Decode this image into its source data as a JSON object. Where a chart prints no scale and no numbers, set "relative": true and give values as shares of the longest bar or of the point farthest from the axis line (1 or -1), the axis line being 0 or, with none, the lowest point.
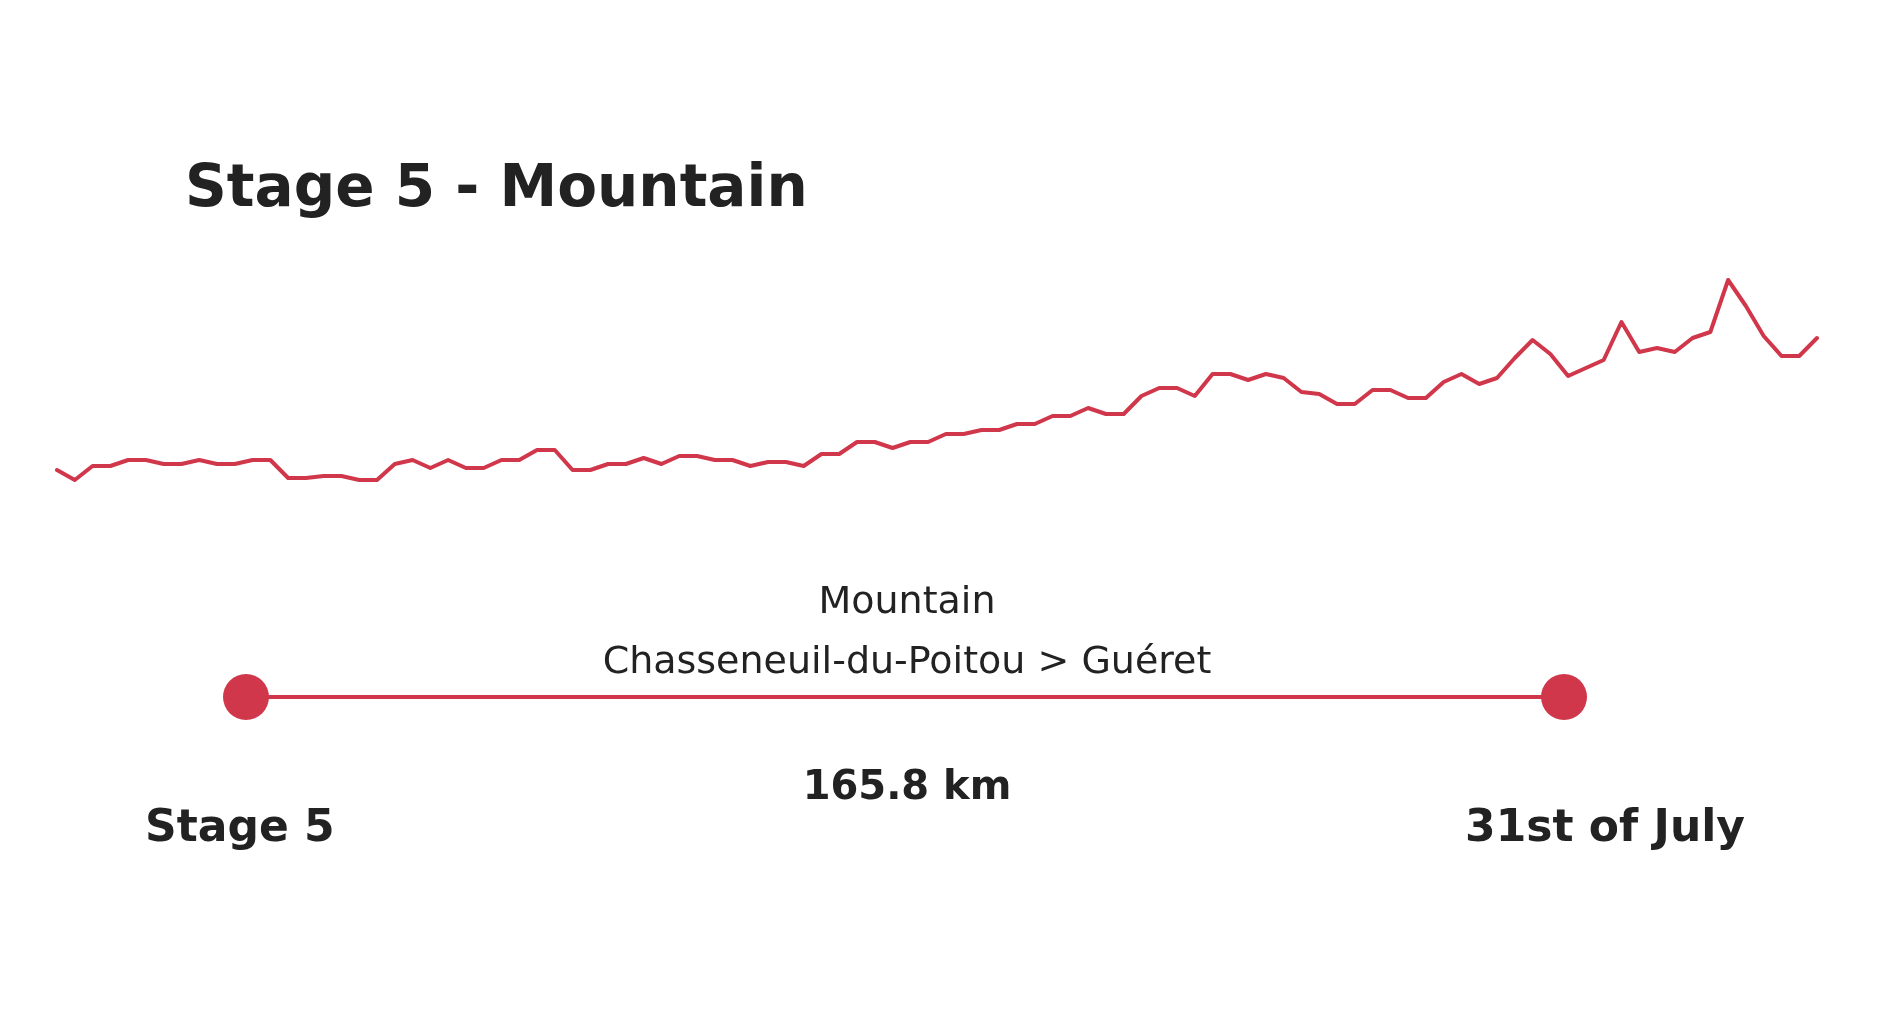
{
  "chart_data": {
    "type": "line",
    "title": "Stage 5 - Mountain",
    "relative": true,
    "categories": [
      null,
      null,
      null,
      null,
      null,
      null,
      null,
      null,
      null,
      null,
      null,
      null,
      null,
      null,
      null,
      null,
      null,
      null,
      null,
      null,
      null,
      null,
      null,
      null,
      null,
      null,
      null,
      null,
      null,
      null,
      null,
      null,
      null,
      null,
      null,
      null,
      null,
      null,
      null,
      null,
      null,
      null,
      null,
      null,
      null,
      null,
      null,
      null,
      null,
      null,
      null,
      null,
      null,
      null,
      null,
      null,
      null,
      null,
      null,
      null,
      null,
      null,
      null,
      null,
      null,
      null,
      null,
      null,
      null,
      null,
      null,
      null,
      null,
      null,
      null,
      null,
      null,
      null,
      null,
      null,
      null,
      null,
      null,
      null,
      null,
      null,
      null,
      null,
      null,
      null,
      null,
      null,
      null,
      null,
      null,
      null,
      null,
      null,
      null,
      null
    ],
    "series": [
      {
        "color": "#d1374a",
        "values": [
          0.05,
          0,
          0.07,
          0.07,
          0.1,
          0.1,
          0.08,
          0.08,
          0.1,
          0.08,
          0.08,
          0.1,
          0.1,
          0.01,
          0.01,
          0.02,
          0.02,
          0,
          0,
          0.08,
          0.1,
          0.06,
          0.1,
          0.06,
          0.06,
          0.1,
          0.1,
          0.15,
          0.15,
          0.05,
          0.05,
          0.08,
          0.08,
          0.11,
          0.08,
          0.12,
          0.12,
          0.1,
          0.1,
          0.07,
          0.09,
          0.09,
          0.07,
          0.13,
          0.13,
          0.19,
          0.19,
          0.16,
          0.19,
          0.19,
          0.23,
          0.23,
          0.25,
          0.25,
          0.28,
          0.28,
          0.32,
          0.32,
          0.36,
          0.33,
          0.33,
          0.42,
          0.46,
          0.46,
          0.42,
          0.53,
          0.53,
          0.5,
          0.53,
          0.51,
          0.44,
          0.43,
          0.38,
          0.38,
          0.45,
          0.45,
          0.41,
          0.41,
          0.49,
          0.53,
          0.48,
          0.51,
          0.61,
          0.7,
          0.63,
          0.52,
          0.56,
          0.6,
          0.79,
          0.64,
          0.66,
          0.64,
          0.71,
          0.74,
          1,
          0.87,
          0.72,
          0.62,
          0.62,
          0.71
        ]
      }
    ],
    "annotations": [
      "Mountain",
      "Chasseneuil-du-Poitou > Guéret",
      "165.8 km",
      "Stage 5",
      "31st of July"
    ]
  }
}
